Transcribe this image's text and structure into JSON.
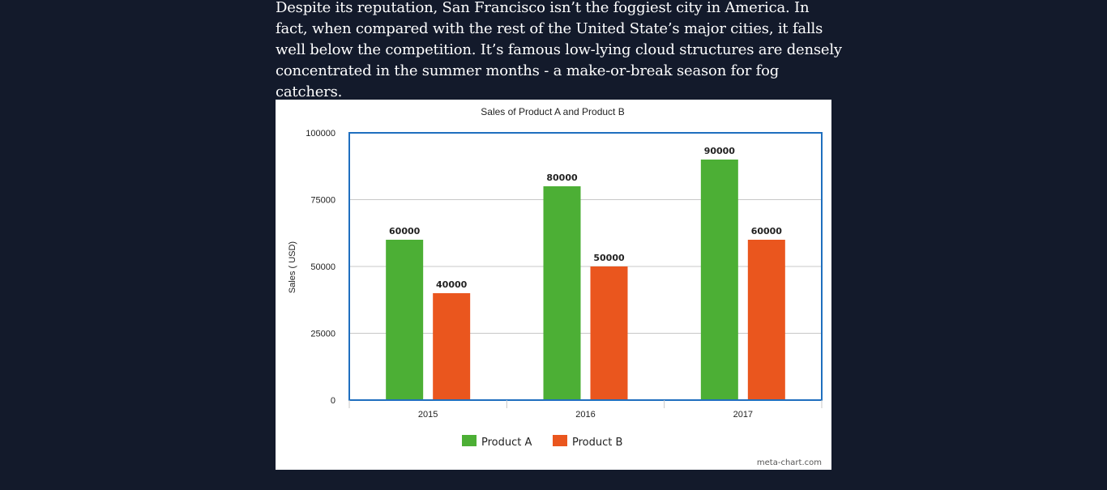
{
  "article": {
    "paragraph": "Despite its reputation, San Francisco isn’t the foggiest city in America. In fact, when compared with the rest of the United State’s major cities, it falls well below the competition. It’s famous low-lying cloud structures are densely concentrated in the summer months - a make-or-break season for fog catchers."
  },
  "chart_data": {
    "type": "bar",
    "title": "Sales of Product A and Product B",
    "xlabel": "",
    "ylabel": "Sales ( USD)",
    "categories": [
      "2015",
      "2016",
      "2017"
    ],
    "series": [
      {
        "name": "Product A",
        "color": "#4caf35",
        "values": [
          60000,
          80000,
          90000
        ]
      },
      {
        "name": "Product B",
        "color": "#ea561e",
        "values": [
          40000,
          50000,
          60000
        ]
      }
    ],
    "ylim": [
      0,
      100000
    ],
    "yticks": [
      0,
      25000,
      50000,
      75000,
      100000
    ],
    "grid": true,
    "legend_position": "bottom",
    "data_labels": true,
    "credit": "meta-chart.com"
  }
}
